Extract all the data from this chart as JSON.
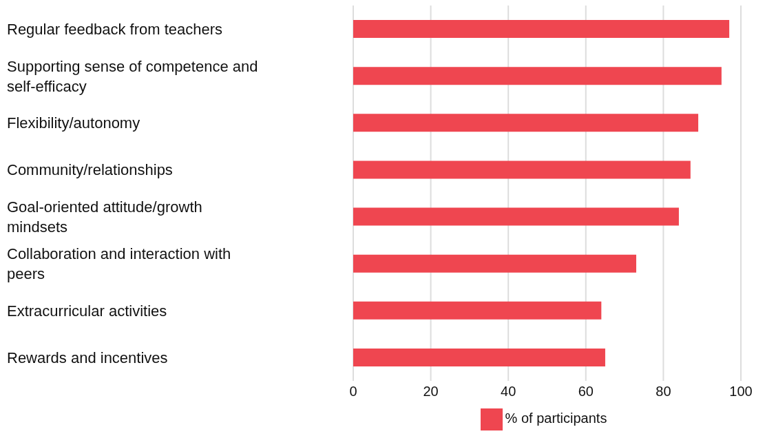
{
  "chart_data": {
    "type": "bar",
    "orientation": "horizontal",
    "categories": [
      "Regular feedback from teachers",
      "Supporting sense of competence and self-efficacy",
      "Flexibility/autonomy",
      "Community/relationships",
      "Goal-oriented attitude/growth mindsets",
      "Collaboration and interaction with peers",
      "Extracurricular activities",
      "Rewards and incentives"
    ],
    "series": [
      {
        "name": "% of participants",
        "color": "#ef4650",
        "values": [
          97,
          95,
          89,
          87,
          84,
          73,
          64,
          65
        ]
      }
    ],
    "xlim": [
      0,
      100
    ],
    "xticks": [
      0,
      20,
      40,
      60,
      80,
      100
    ],
    "grid": "x",
    "legend": "bottom"
  }
}
